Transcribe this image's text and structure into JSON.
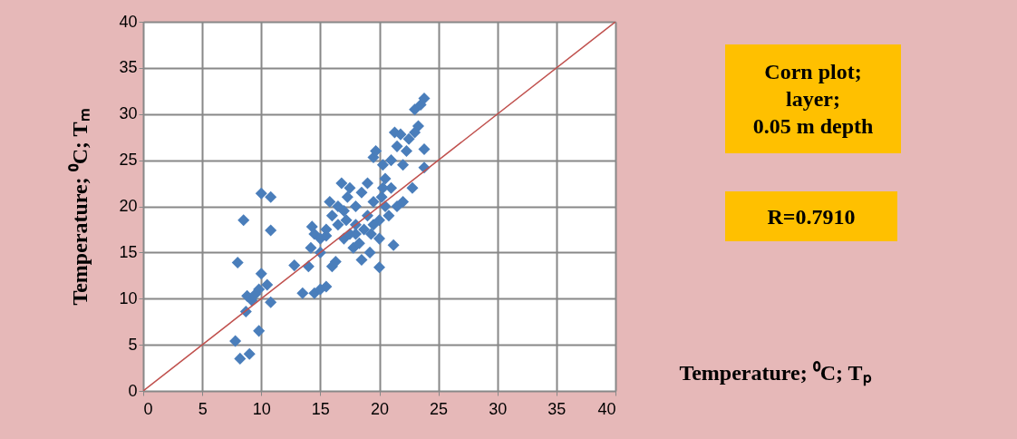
{
  "chart_data": {
    "type": "scatter",
    "xlabel": "Temperature; ⁰C; Tₚ",
    "ylabel": "Temperature; ⁰C; Tₘ",
    "annotations": [
      "Corn plot;\nlayer;\n0.05 m depth",
      "R=0.7910"
    ],
    "xlim": [
      0,
      40
    ],
    "ylim": [
      0,
      40
    ],
    "xticks": [
      0,
      5,
      10,
      15,
      20,
      25,
      30,
      35,
      40
    ],
    "yticks": [
      0,
      5,
      10,
      15,
      20,
      25,
      30,
      35,
      40
    ],
    "grid": true,
    "marker": "diamond",
    "series": [
      {
        "color": "#4a7ebb",
        "x": [
          7.8,
          8.2,
          9.0,
          9.8,
          8.0,
          8.5,
          10.0,
          10.8,
          10.8,
          8.8,
          8.7,
          9.2,
          9.8,
          10.0,
          10.5,
          10.8,
          9.5,
          12.8,
          13.5,
          14.5,
          15.0,
          15.5,
          14.0,
          14.2,
          14.3,
          14.5,
          15.0,
          15.0,
          15.5,
          15.8,
          16.0,
          16.3,
          16.5,
          16.5,
          16.8,
          17.0,
          17.0,
          17.3,
          17.5,
          17.5,
          17.8,
          18.0,
          18.0,
          18.3,
          18.5,
          18.5,
          18.7,
          19.0,
          19.0,
          19.2,
          19.3,
          19.5,
          19.5,
          19.7,
          20.0,
          20.0,
          20.0,
          20.2,
          20.3,
          20.5,
          20.8,
          21.0,
          21.0,
          21.2,
          21.3,
          21.5,
          21.5,
          21.8,
          22.0,
          22.0,
          22.3,
          22.5,
          22.8,
          23.0,
          23.0,
          23.3,
          23.5,
          23.8,
          23.8,
          23.8,
          16.0,
          15.5,
          18.0,
          17.2,
          19.5,
          20.5,
          20.3
        ],
        "values": [
          5.4,
          3.5,
          4.0,
          6.5,
          13.9,
          18.5,
          21.4,
          21.0,
          17.4,
          10.3,
          8.6,
          9.8,
          11.0,
          12.7,
          11.5,
          9.6,
          10.5,
          13.6,
          10.6,
          10.6,
          11.0,
          11.3,
          13.5,
          15.5,
          17.8,
          17.0,
          15.0,
          16.5,
          16.8,
          20.5,
          13.5,
          14.0,
          18.0,
          20.0,
          22.5,
          16.5,
          19.5,
          21.0,
          17.0,
          22.0,
          15.5,
          18.0,
          20.0,
          16.0,
          14.2,
          21.5,
          17.5,
          19.0,
          22.5,
          15.0,
          17.0,
          20.5,
          25.3,
          26.0,
          13.4,
          18.5,
          16.5,
          21.0,
          24.5,
          23.0,
          19.0,
          22.0,
          25.0,
          15.8,
          28.0,
          20.0,
          26.5,
          27.8,
          24.5,
          20.5,
          26.0,
          27.3,
          22.0,
          28.0,
          30.5,
          28.7,
          31.0,
          31.7,
          26.2,
          24.2,
          19.0,
          17.5,
          17.0,
          18.5,
          18.0,
          20.0,
          22.0
        ]
      },
      {
        "type": "line",
        "marker": "none",
        "color": "#c0504d",
        "x": [
          0,
          40
        ],
        "values": [
          0,
          40
        ]
      }
    ]
  }
}
